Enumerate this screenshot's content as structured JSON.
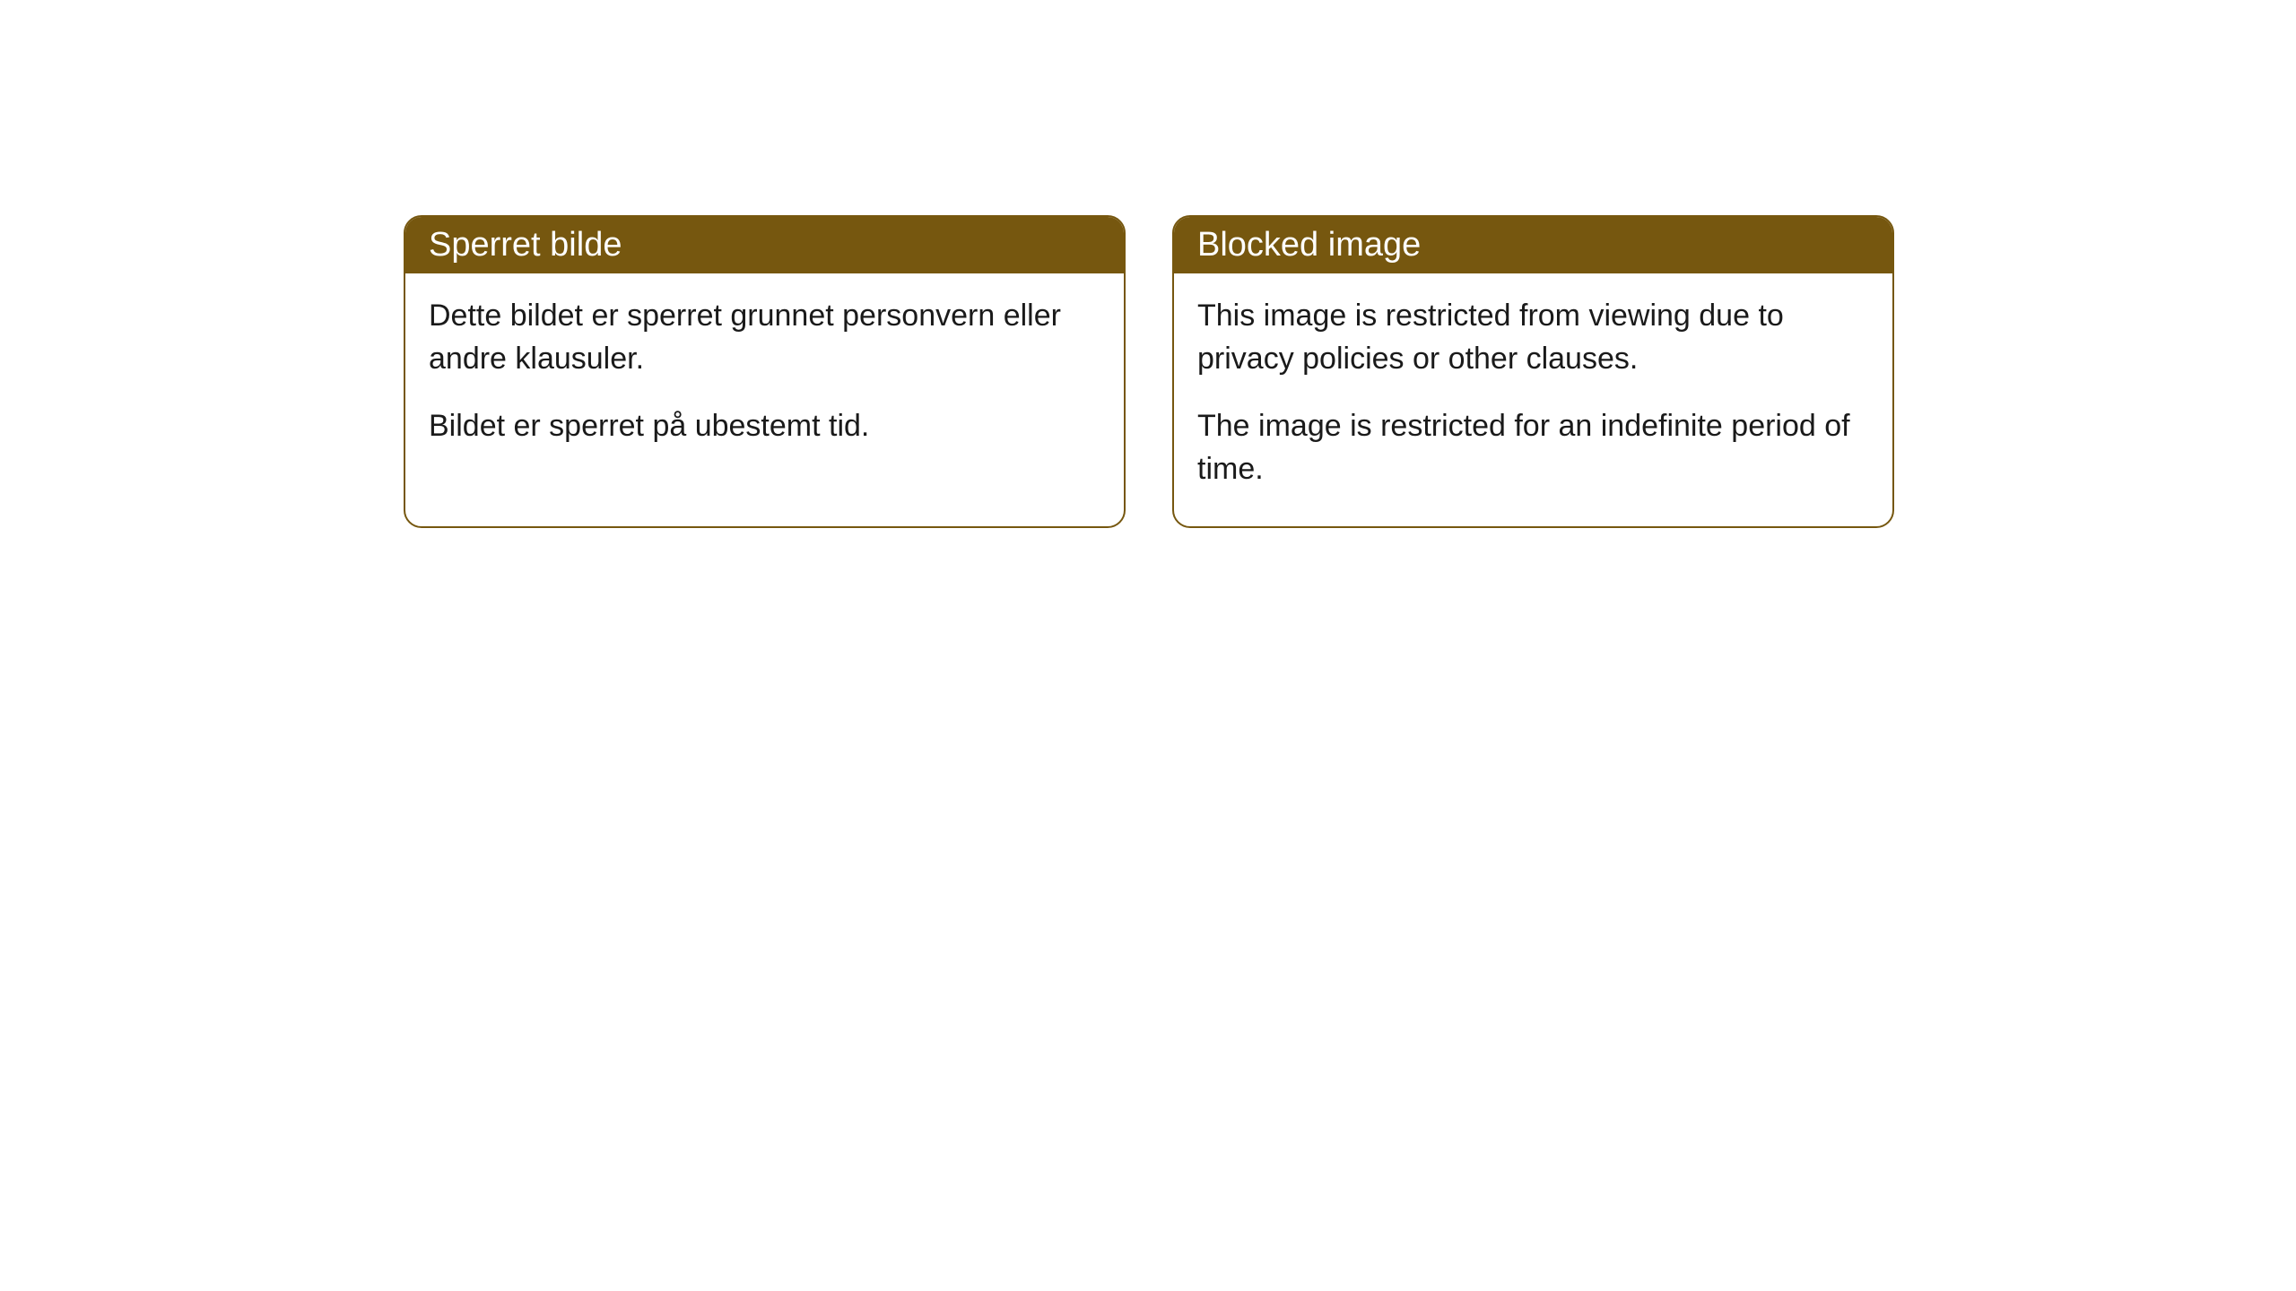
{
  "cards": [
    {
      "title": "Sperret bilde",
      "paragraph1": "Dette bildet er sperret grunnet personvern eller andre klausuler.",
      "paragraph2": "Bildet er sperret på ubestemt tid."
    },
    {
      "title": "Blocked image",
      "paragraph1": "This image is restricted from viewing due to privacy policies or other clauses.",
      "paragraph2": "The image is restricted for an indefinite period of time."
    }
  ],
  "styling": {
    "header_bg_color": "#76570f",
    "header_text_color": "#ffffff",
    "border_color": "#76570f",
    "border_radius": 20,
    "body_bg_color": "#ffffff",
    "body_text_color": "#1a1a1a",
    "title_fontsize": 38,
    "body_fontsize": 34
  }
}
